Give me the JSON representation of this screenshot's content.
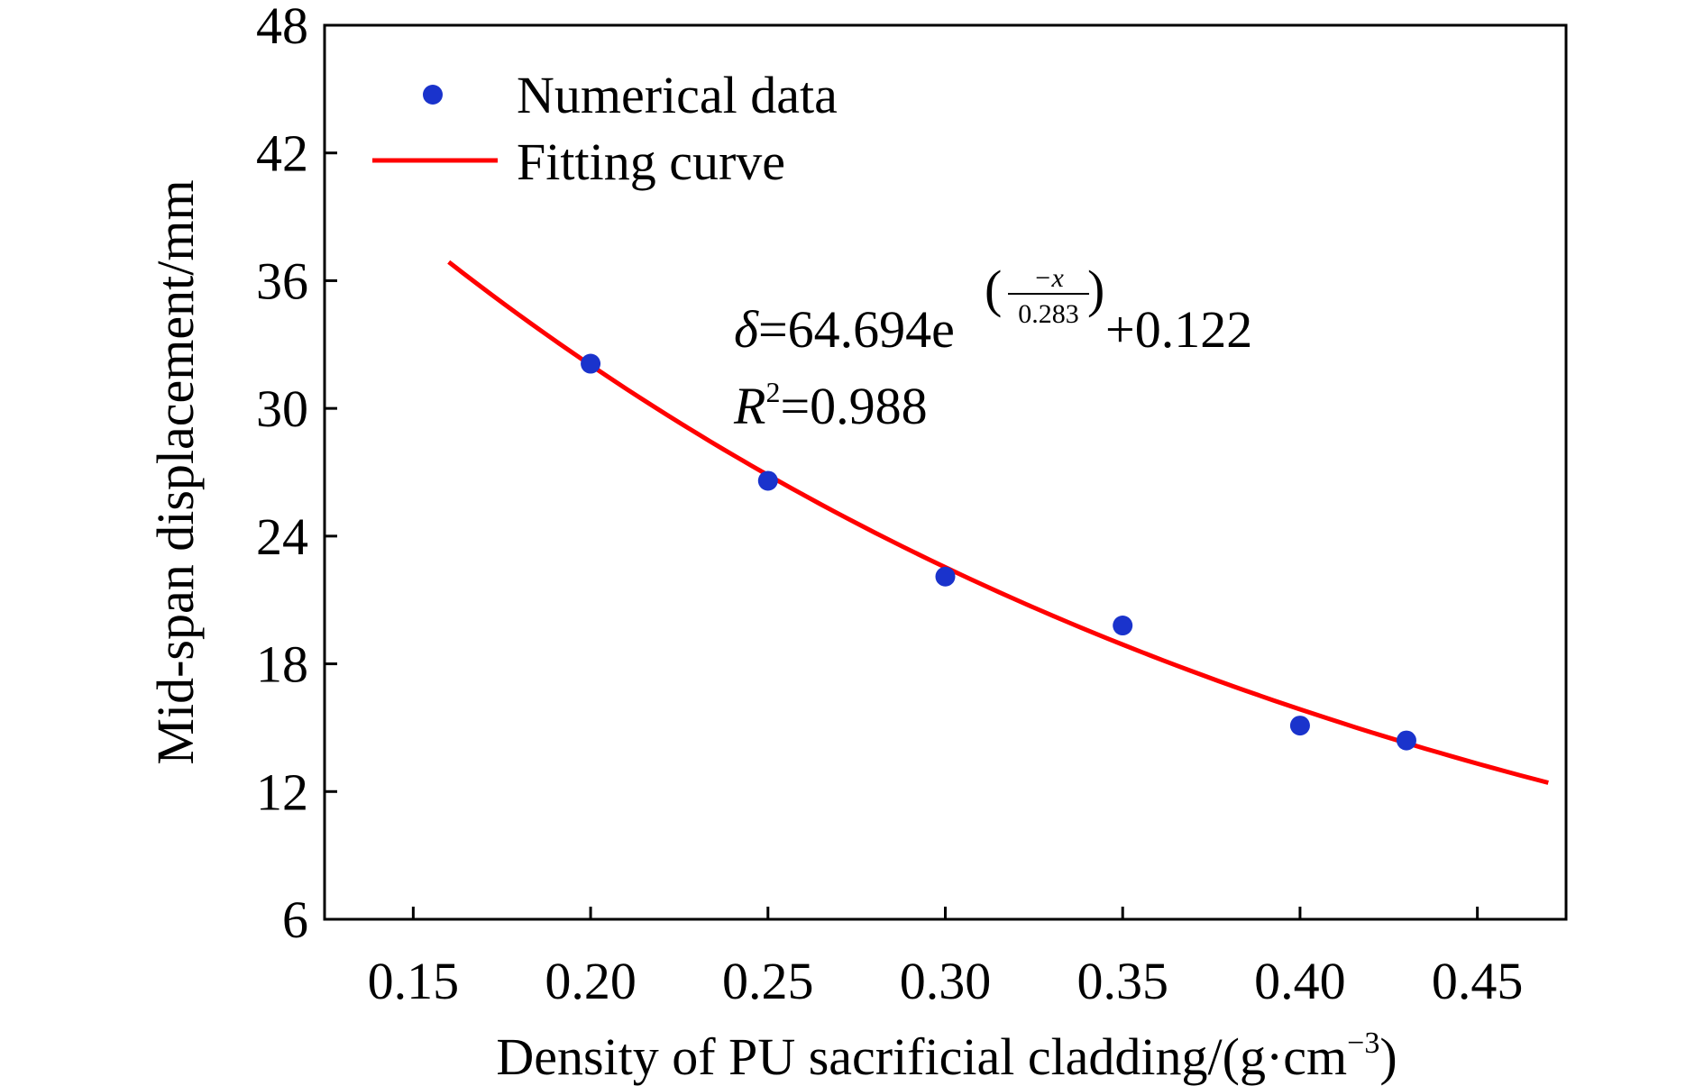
{
  "chart_data": {
    "type": "scatter",
    "xlabel": "Density of PU sacrificial cladding/(g·cm",
    "xlabel_sup": "−3",
    "xlabel_tail": ")",
    "ylabel": "Mid-span displacement/mm",
    "xlim": [
      0.125,
      0.475
    ],
    "ylim": [
      6,
      48
    ],
    "xticks": [
      0.15,
      0.2,
      0.25,
      0.3,
      0.35,
      0.4,
      0.45
    ],
    "xtick_labels": [
      "0.15",
      "0.20",
      "0.25",
      "0.30",
      "0.35",
      "0.40",
      "0.45"
    ],
    "yticks": [
      6,
      12,
      18,
      24,
      30,
      36,
      42,
      48
    ],
    "ytick_labels": [
      "6",
      "12",
      "18",
      "24",
      "30",
      "36",
      "42",
      "48"
    ],
    "legend_position": "top-left",
    "grid": false,
    "series": [
      {
        "name": "Numerical data",
        "kind": "scatter",
        "color": "#1a33cc",
        "x": [
          0.2,
          0.25,
          0.3,
          0.35,
          0.4,
          0.43
        ],
        "y": [
          32.1,
          26.6,
          22.1,
          19.8,
          15.1,
          14.4
        ]
      },
      {
        "name": "Fitting curve",
        "kind": "line",
        "color": "#ff0000",
        "function": "exp_decay",
        "a": 64.694,
        "t": 0.283,
        "c": 0.122,
        "x_range": [
          0.16,
          0.47
        ]
      }
    ],
    "annotation": {
      "delta": "δ",
      "eq_main": "=64.694e",
      "eq_num": "−x",
      "eq_den": "0.283",
      "eq_tail": "+0.122",
      "r": "R",
      "r_sup": "2",
      "r_tail": "=0.988"
    }
  }
}
